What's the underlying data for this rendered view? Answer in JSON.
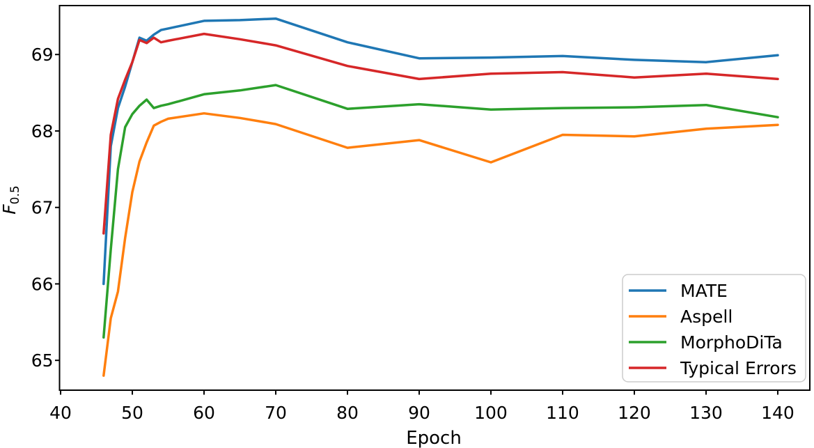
{
  "chart_data": {
    "type": "line",
    "title": "",
    "xlabel": "Epoch",
    "ylabel": "F_0.5",
    "ylabel_main": "F",
    "ylabel_sub": "0.5",
    "xlim": [
      39.85,
      144.47
    ],
    "ylim": [
      64.61,
      69.64
    ],
    "xticks": [
      40,
      50,
      60,
      70,
      80,
      90,
      100,
      110,
      120,
      130,
      140
    ],
    "yticks": [
      65,
      66,
      67,
      68,
      69
    ],
    "grid": false,
    "legend_position": "lower right",
    "axis_color": "#000000",
    "legend_border_color": "#cccccc",
    "x": [
      46,
      47,
      48,
      49,
      50,
      51,
      52,
      53,
      54,
      55,
      60,
      65,
      70,
      80,
      90,
      100,
      110,
      120,
      130,
      140
    ],
    "series": [
      {
        "name": "MATE",
        "color": "#1f77b4",
        "values": [
          66.0,
          67.8,
          68.3,
          68.58,
          68.9,
          69.22,
          69.18,
          69.26,
          69.32,
          69.34,
          69.44,
          69.45,
          69.47,
          69.16,
          68.95,
          68.96,
          68.98,
          68.93,
          68.9,
          68.99
        ]
      },
      {
        "name": "Aspell",
        "color": "#ff7f0e",
        "values": [
          64.8,
          65.55,
          65.9,
          66.6,
          67.2,
          67.6,
          67.85,
          68.07,
          68.12,
          68.16,
          68.23,
          68.17,
          68.09,
          67.78,
          67.88,
          67.59,
          67.95,
          67.93,
          68.03,
          68.08
        ]
      },
      {
        "name": "MorphoDiTa",
        "color": "#2ca02c",
        "values": [
          65.3,
          66.45,
          67.5,
          68.05,
          68.22,
          68.33,
          68.41,
          68.3,
          68.33,
          68.35,
          68.48,
          68.53,
          68.6,
          68.29,
          68.35,
          68.28,
          68.3,
          68.31,
          68.34,
          68.18
        ]
      },
      {
        "name": "Typical Errors",
        "color": "#d62728",
        "values": [
          66.66,
          67.95,
          68.42,
          68.67,
          68.9,
          69.19,
          69.15,
          69.22,
          69.16,
          69.18,
          69.27,
          69.2,
          69.12,
          68.85,
          68.68,
          68.75,
          68.77,
          68.7,
          68.75,
          68.68
        ]
      }
    ]
  }
}
